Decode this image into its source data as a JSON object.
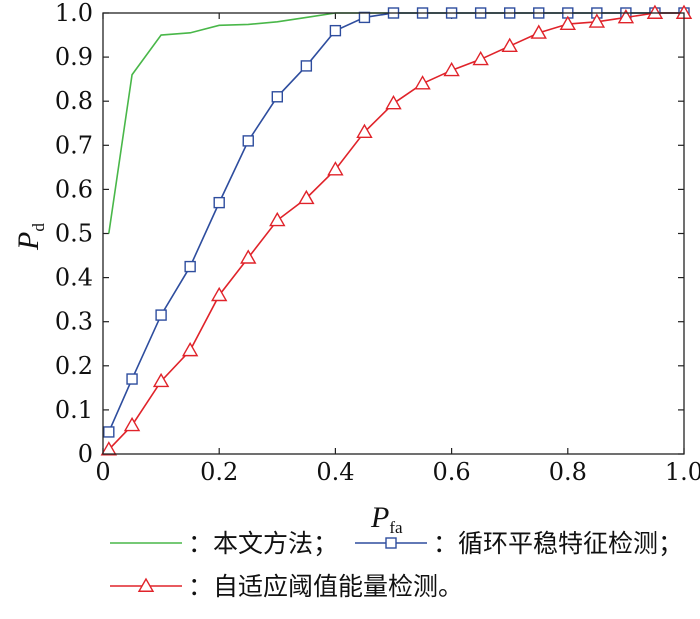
{
  "chart_data": {
    "type": "line",
    "xlabel": "P",
    "xlabel_sub": "fa",
    "ylabel": "P",
    "ylabel_sub": "d",
    "xlim": [
      0,
      1
    ],
    "ylim": [
      0,
      1
    ],
    "xticks": [
      "0",
      "0.2",
      "0.4",
      "0.6",
      "0.8",
      "1.0"
    ],
    "yticks": [
      "0",
      "0.1",
      "0.2",
      "0.3",
      "0.4",
      "0.5",
      "0.6",
      "0.7",
      "0.8",
      "0.9",
      "1.0"
    ],
    "legend_placement": "bottom",
    "series": [
      {
        "name": "：本文方法；",
        "color": "#49b749",
        "marker": "none",
        "x": [
          0.01,
          0.05,
          0.1,
          0.15,
          0.2,
          0.25,
          0.3,
          0.35,
          0.4,
          0.45,
          0.5,
          0.55,
          0.6,
          0.65,
          0.7,
          0.75,
          0.8,
          0.85,
          0.9,
          0.95,
          1.0
        ],
        "y": [
          0.5,
          0.86,
          0.95,
          0.955,
          0.972,
          0.974,
          0.98,
          0.99,
          1.0,
          1.0,
          1.0,
          1.0,
          1.0,
          1.0,
          1.0,
          1.0,
          1.0,
          1.0,
          1.0,
          1.0,
          1.0
        ]
      },
      {
        "name": "：循环平稳特征检测；",
        "color": "#2e4d9e",
        "marker": "square",
        "x": [
          0.01,
          0.05,
          0.1,
          0.15,
          0.2,
          0.25,
          0.3,
          0.35,
          0.4,
          0.45,
          0.5,
          0.55,
          0.6,
          0.65,
          0.7,
          0.75,
          0.8,
          0.85,
          0.9,
          0.95,
          1.0
        ],
        "y": [
          0.05,
          0.17,
          0.315,
          0.425,
          0.57,
          0.71,
          0.81,
          0.88,
          0.96,
          0.99,
          1.0,
          1.0,
          1.0,
          1.0,
          1.0,
          1.0,
          1.0,
          1.0,
          1.0,
          1.0,
          1.0
        ]
      },
      {
        "name": "：自适应阈值能量检测。",
        "color": "#e0232a",
        "marker": "triangle",
        "x": [
          0.01,
          0.05,
          0.1,
          0.15,
          0.2,
          0.25,
          0.3,
          0.35,
          0.4,
          0.45,
          0.5,
          0.55,
          0.6,
          0.65,
          0.7,
          0.75,
          0.8,
          0.85,
          0.9,
          0.95,
          1.0
        ],
        "y": [
          0.01,
          0.065,
          0.165,
          0.235,
          0.36,
          0.445,
          0.53,
          0.58,
          0.645,
          0.73,
          0.795,
          0.84,
          0.87,
          0.895,
          0.925,
          0.955,
          0.975,
          0.98,
          0.99,
          1.0,
          1.0
        ]
      }
    ]
  }
}
